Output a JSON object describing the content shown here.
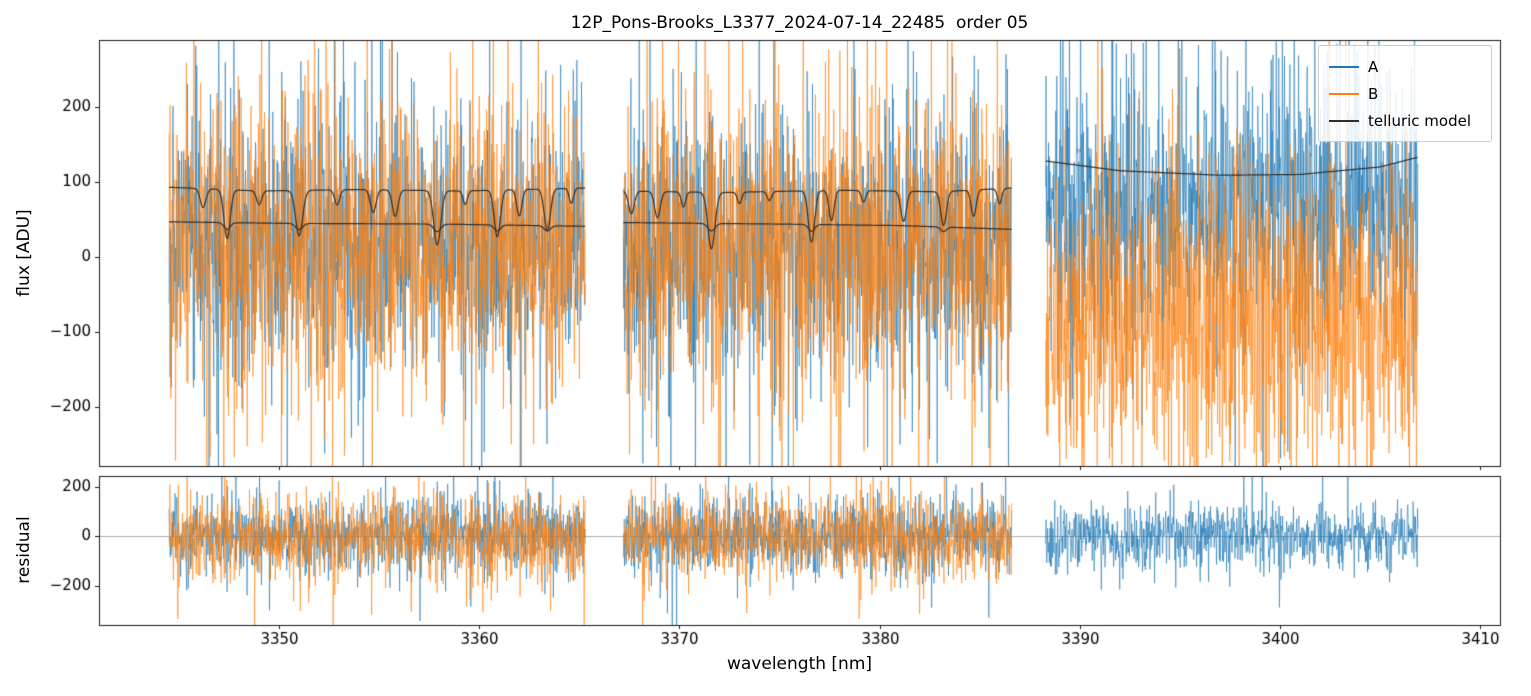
{
  "figure": {
    "title": "12P_Pons-Brooks_L3377_2024-07-14_22485  order 05"
  },
  "chart_data": {
    "type": "line",
    "title": "12P_Pons-Brooks_L3377_2024-07-14_22485  order 05",
    "xlabel": "wavelength [nm]",
    "xlim": [
      3341,
      3411
    ],
    "xticks": [
      3350,
      3360,
      3370,
      3380,
      3390,
      3400,
      3410
    ],
    "grid": false,
    "legend_position": "upper right",
    "subplots": [
      {
        "name": "flux",
        "ylabel": "flux [ADU]",
        "ylim": [
          -278,
          289
        ],
        "yticks": [
          -200,
          -100,
          0,
          100,
          200
        ]
      },
      {
        "name": "residual",
        "ylabel": "residual",
        "ylim": [
          -360,
          245
        ],
        "yticks": [
          -200,
          0,
          200
        ],
        "zero_line": true
      }
    ],
    "legend": [
      {
        "label": "A",
        "color": "#1f77b4"
      },
      {
        "label": "B",
        "color": "#ff7f0e"
      },
      {
        "label": "telluric model",
        "color": "#2f2f2f"
      }
    ],
    "colors": {
      "series_A": "#1f77b4",
      "series_B": "#ff7f0e",
      "telluric_model": "#2f2f2f",
      "zero_line": "#999999",
      "spine": "#1a1a1a"
    },
    "segments": [
      {
        "x_range": [
          3344.5,
          3365.3
        ],
        "flux_A": {
          "mean": 15,
          "std": 92
        },
        "flux_B": {
          "mean": 15,
          "std": 100
        },
        "residual_A": {
          "mean": 0,
          "std": 80
        },
        "residual_B": {
          "mean": 0,
          "std": 85
        },
        "telluric": [
          {
            "continuum": [
              [
                3344.5,
                93
              ],
              [
                3349,
                88
              ],
              [
                3354,
                90
              ],
              [
                3359,
                88
              ],
              [
                3365.3,
                92
              ]
            ],
            "lines": [
              {
                "c": 3346.2,
                "d": 25,
                "w": 0.2
              },
              {
                "c": 3347.4,
                "d": 65,
                "w": 0.22
              },
              {
                "c": 3349.0,
                "d": 18,
                "w": 0.18
              },
              {
                "c": 3351.0,
                "d": 60,
                "w": 0.25
              },
              {
                "c": 3352.9,
                "d": 20,
                "w": 0.18
              },
              {
                "c": 3354.7,
                "d": 30,
                "w": 0.2
              },
              {
                "c": 3355.8,
                "d": 35,
                "w": 0.2
              },
              {
                "c": 3357.9,
                "d": 72,
                "w": 0.25
              },
              {
                "c": 3359.3,
                "d": 18,
                "w": 0.15
              },
              {
                "c": 3360.9,
                "d": 62,
                "w": 0.22
              },
              {
                "c": 3362.0,
                "d": 35,
                "w": 0.18
              },
              {
                "c": 3363.4,
                "d": 55,
                "w": 0.22
              },
              {
                "c": 3364.6,
                "d": 20,
                "w": 0.15
              }
            ]
          },
          {
            "continuum": [
              [
                3344.5,
                47
              ],
              [
                3350,
                45
              ],
              [
                3358,
                44
              ],
              [
                3365.3,
                41
              ]
            ],
            "lines": [
              {
                "c": 3347.4,
                "d": 9,
                "w": 0.22
              },
              {
                "c": 3351.0,
                "d": 8,
                "w": 0.25
              },
              {
                "c": 3357.9,
                "d": 10,
                "w": 0.25
              },
              {
                "c": 3360.9,
                "d": 8,
                "w": 0.22
              },
              {
                "c": 3363.4,
                "d": 7,
                "w": 0.22
              }
            ]
          }
        ]
      },
      {
        "x_range": [
          3367.2,
          3386.6
        ],
        "flux_A": {
          "mean": 12,
          "std": 92
        },
        "flux_B": {
          "mean": 12,
          "std": 100
        },
        "residual_A": {
          "mean": 0,
          "std": 80
        },
        "residual_B": {
          "mean": 0,
          "std": 85
        },
        "telluric": [
          {
            "continuum": [
              [
                3367.2,
                88
              ],
              [
                3372,
                86
              ],
              [
                3378,
                89
              ],
              [
                3383,
                87
              ],
              [
                3386.6,
                92
              ]
            ],
            "lines": [
              {
                "c": 3367.6,
                "d": 30,
                "w": 0.2
              },
              {
                "c": 3368.9,
                "d": 35,
                "w": 0.2
              },
              {
                "c": 3370.2,
                "d": 20,
                "w": 0.15
              },
              {
                "c": 3371.6,
                "d": 75,
                "w": 0.25
              },
              {
                "c": 3373.0,
                "d": 15,
                "w": 0.15
              },
              {
                "c": 3374.5,
                "d": 12,
                "w": 0.15
              },
              {
                "c": 3376.6,
                "d": 68,
                "w": 0.22
              },
              {
                "c": 3377.6,
                "d": 40,
                "w": 0.18
              },
              {
                "c": 3379.2,
                "d": 15,
                "w": 0.15
              },
              {
                "c": 3381.2,
                "d": 40,
                "w": 0.2
              },
              {
                "c": 3383.2,
                "d": 45,
                "w": 0.2
              },
              {
                "c": 3384.7,
                "d": 35,
                "w": 0.18
              },
              {
                "c": 3386.0,
                "d": 20,
                "w": 0.15
              }
            ]
          },
          {
            "continuum": [
              [
                3367.2,
                46
              ],
              [
                3375,
                44
              ],
              [
                3381,
                42
              ],
              [
                3386.6,
                37
              ]
            ],
            "lines": [
              {
                "c": 3371.6,
                "d": 10,
                "w": 0.25
              },
              {
                "c": 3376.6,
                "d": 9,
                "w": 0.22
              },
              {
                "c": 3383.2,
                "d": 6,
                "w": 0.2
              }
            ]
          }
        ]
      },
      {
        "x_range": [
          3388.3,
          3406.9
        ],
        "flux_A": {
          "mean": 75,
          "std": 88
        },
        "flux_B": {
          "mean": -80,
          "std": 100
        },
        "residual_A": {
          "mean": 0,
          "std": 68
        },
        "residual_B": null,
        "telluric": [
          {
            "continuum": [
              [
                3388.3,
                128
              ],
              [
                3392,
                115
              ],
              [
                3397,
                109
              ],
              [
                3401,
                110
              ],
              [
                3405,
                120
              ],
              [
                3406.9,
                133
              ]
            ],
            "lines": []
          }
        ]
      }
    ]
  }
}
